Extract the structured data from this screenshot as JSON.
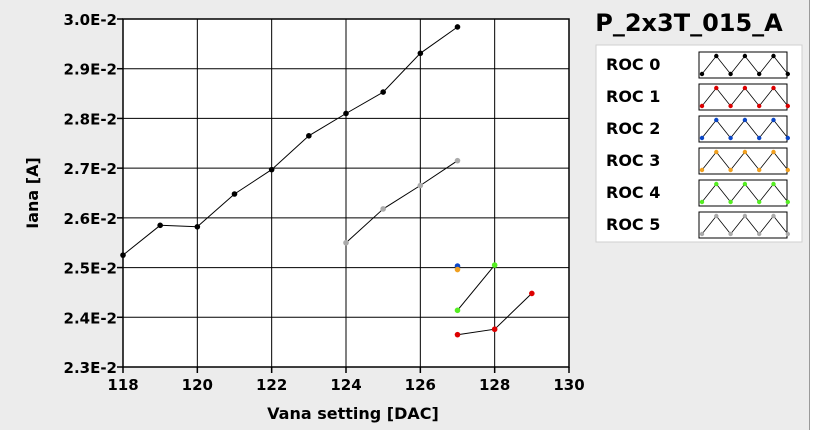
{
  "chart_data": {
    "type": "line",
    "title": "P_2x3T_015_A",
    "xlabel": "Vana setting [DAC]",
    "ylabel": "Iana [A]",
    "xlim": [
      118,
      130
    ],
    "ylim": [
      0.023,
      0.03
    ],
    "x_ticks": [
      "118",
      "120",
      "122",
      "124",
      "126",
      "128",
      "130"
    ],
    "y_ticks": [
      "2.3E-2",
      "2.4E-2",
      "2.5E-2",
      "2.6E-2",
      "2.7E-2",
      "2.8E-2",
      "2.9E-2",
      "3.0E-2"
    ],
    "grid": true,
    "legend_position": "right",
    "series": [
      {
        "name": "ROC 0",
        "color": "#000000",
        "x": [
          118,
          119,
          120,
          121,
          122,
          123,
          124,
          125,
          126,
          127
        ],
        "y": [
          0.02525,
          0.02585,
          0.02582,
          0.02648,
          0.02697,
          0.02765,
          0.0281,
          0.02853,
          0.02931,
          0.02984
        ]
      },
      {
        "name": "ROC 1",
        "color": "#dd0000",
        "x": [
          127,
          128,
          129
        ],
        "y": [
          0.02365,
          0.02376,
          0.02448
        ]
      },
      {
        "name": "ROC 2",
        "color": "#0a46c8",
        "x": [
          127
        ],
        "y": [
          0.02503
        ]
      },
      {
        "name": "ROC 3",
        "color": "#f0a020",
        "x": [
          127
        ],
        "y": [
          0.02496
        ]
      },
      {
        "name": "ROC 4",
        "color": "#55ee22",
        "x": [
          127,
          128
        ],
        "y": [
          0.02414,
          0.02505
        ]
      },
      {
        "name": "ROC 5",
        "color": "#aaaaaa",
        "x": [
          124,
          125,
          126,
          127
        ],
        "y": [
          0.0255,
          0.02618,
          0.02665,
          0.02715
        ]
      }
    ]
  }
}
